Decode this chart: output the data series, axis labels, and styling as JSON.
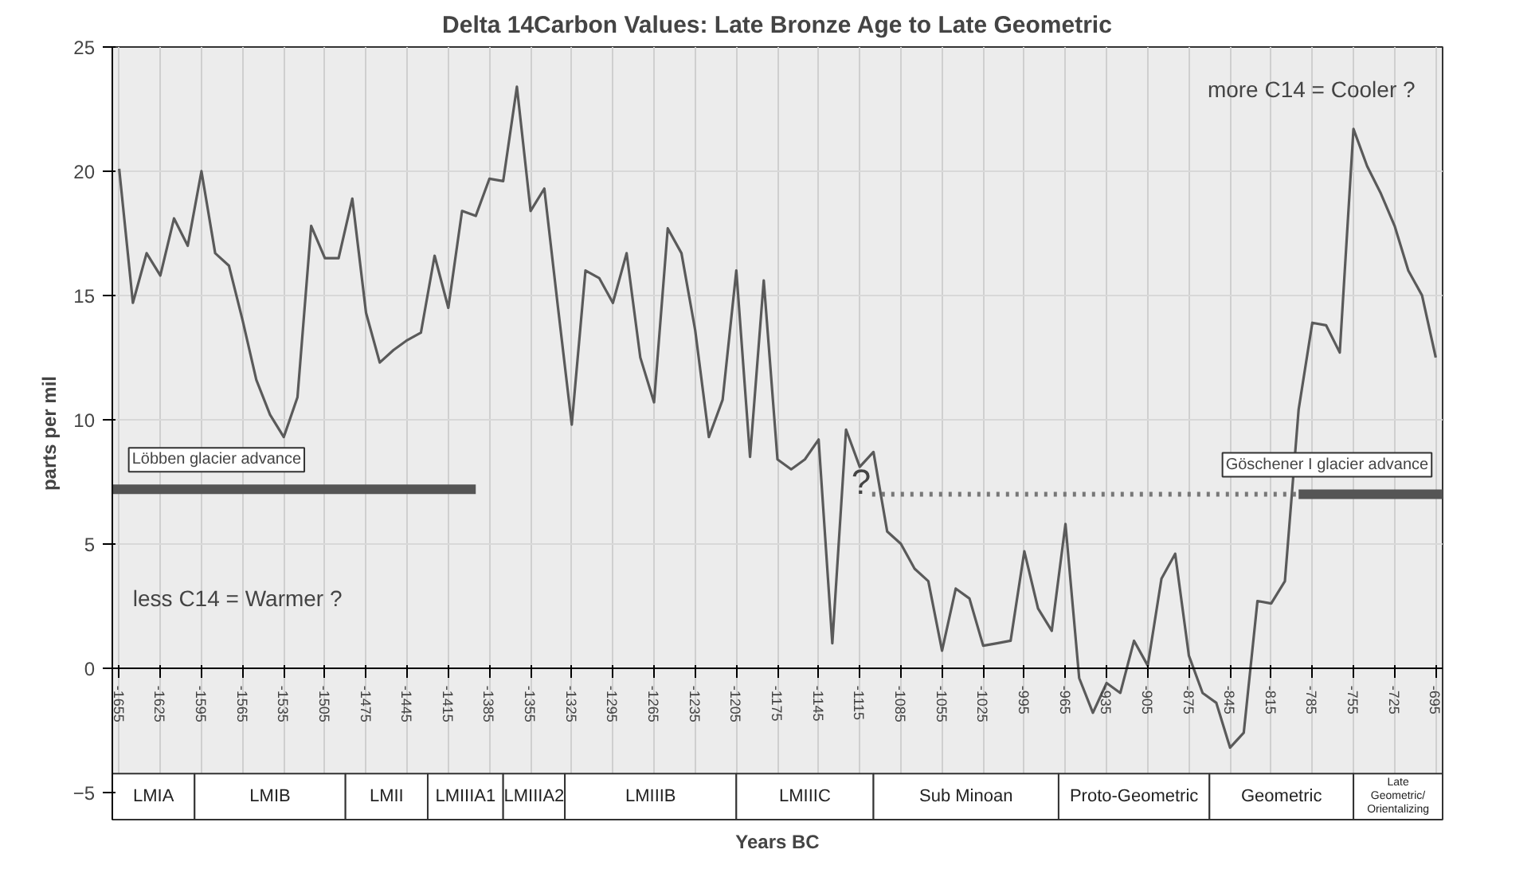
{
  "chart_data": {
    "type": "line",
    "title": "Delta 14Carbon Values: Late Bronze Age to Late Geometric",
    "xlabel": "Years BC",
    "ylabel": "parts per mil",
    "x": [
      -1655,
      -1645,
      -1635,
      -1625,
      -1615,
      -1605,
      -1595,
      -1585,
      -1575,
      -1565,
      -1555,
      -1545,
      -1535,
      -1525,
      -1515,
      -1505,
      -1495,
      -1485,
      -1475,
      -1465,
      -1455,
      -1445,
      -1435,
      -1425,
      -1415,
      -1405,
      -1395,
      -1385,
      -1375,
      -1365,
      -1355,
      -1345,
      -1335,
      -1325,
      -1315,
      -1305,
      -1295,
      -1285,
      -1275,
      -1265,
      -1255,
      -1245,
      -1235,
      -1225,
      -1215,
      -1205,
      -1195,
      -1185,
      -1175,
      -1165,
      -1155,
      -1145,
      -1135,
      -1125,
      -1115,
      -1105,
      -1095,
      -1085,
      -1075,
      -1065,
      -1055,
      -1045,
      -1035,
      -1025,
      -1015,
      -1005,
      -995,
      -985,
      -975,
      -965,
      -955,
      -945,
      -935,
      -925,
      -915,
      -905,
      -895,
      -885,
      -875,
      -865,
      -855,
      -845,
      -835,
      -825,
      -815,
      -805,
      -795,
      -785,
      -775,
      -765,
      -755,
      -745,
      -735,
      -725,
      -715,
      -705,
      -695
    ],
    "series": [
      {
        "color": "#5a5a5a",
        "values": [
          20.1,
          14.7,
          16.7,
          15.8,
          18.1,
          17.0,
          20.0,
          16.7,
          16.2,
          14.0,
          11.6,
          10.2,
          9.3,
          10.9,
          17.8,
          16.5,
          16.5,
          18.9,
          14.3,
          12.3,
          12.8,
          13.2,
          13.5,
          16.6,
          14.5,
          18.4,
          18.2,
          19.7,
          19.6,
          23.4,
          18.4,
          19.3,
          14.5,
          9.8,
          16.0,
          15.7,
          14.7,
          16.7,
          12.5,
          10.7,
          17.7,
          16.7,
          13.6,
          9.3,
          10.8,
          16.0,
          8.5,
          15.6,
          8.4,
          8.0,
          8.4,
          9.2,
          1.0,
          9.6,
          8.1,
          8.7,
          5.5,
          5.0,
          4.0,
          3.5,
          0.7,
          3.2,
          2.8,
          0.9,
          1.0,
          1.1,
          4.7,
          2.4,
          1.5,
          5.8,
          -0.4,
          -1.8,
          -0.6,
          -1.0,
          1.1,
          0.1,
          3.6,
          4.6,
          0.5,
          -1.0,
          -1.4,
          -3.2,
          -2.6,
          2.7,
          2.6,
          3.5,
          10.4,
          13.9,
          13.8,
          12.7,
          21.7,
          20.2,
          19.1,
          17.8,
          16.0,
          15.0,
          12.5
        ]
      },
      {
        "name": "Löbben glacier advance",
        "color": "#555555",
        "x": [
          -1660,
          -1395
        ],
        "values": [
          7.2,
          7.2
        ]
      },
      {
        "name": "Göschener I glacier advance",
        "color": "#555555",
        "x": [
          -795,
          -690
        ],
        "values": [
          7.0,
          7.0
        ]
      },
      {
        "color": "#777777",
        "line_style": "dotted",
        "x": [
          -1106,
          -795
        ],
        "values": [
          7.0,
          7.0
        ]
      }
    ],
    "xlim": [
      -1660,
      -690
    ],
    "ylim": [
      -6.1,
      25
    ],
    "xticks": [
      -1655,
      -1625,
      -1595,
      -1565,
      -1535,
      -1505,
      -1475,
      -1445,
      -1415,
      -1385,
      -1355,
      -1325,
      -1295,
      -1265,
      -1235,
      -1205,
      -1175,
      -1145,
      -1115,
      -1085,
      -1055,
      -1025,
      -995,
      -965,
      -935,
      -905,
      -875,
      -845,
      -815,
      -785,
      -755,
      -725,
      -695
    ],
    "yticks": [
      -5,
      0,
      5,
      10,
      15,
      20,
      25
    ],
    "grid": true,
    "bands": [
      {
        "axis": "x",
        "from": -1660,
        "to": -1600,
        "label": "LMIA"
      },
      {
        "axis": "x",
        "from": -1600,
        "to": -1490,
        "label": "LMIB"
      },
      {
        "axis": "x",
        "from": -1490,
        "to": -1430,
        "label": "LMII"
      },
      {
        "axis": "x",
        "from": -1430,
        "to": -1375,
        "label": "LMIIIA1"
      },
      {
        "axis": "x",
        "from": -1375,
        "to": -1330,
        "label": "LMIIIA2"
      },
      {
        "axis": "x",
        "from": -1330,
        "to": -1205,
        "label": "LMIIIB"
      },
      {
        "axis": "x",
        "from": -1205,
        "to": -1105,
        "label": "LMIIIC"
      },
      {
        "axis": "x",
        "from": -1105,
        "to": -970,
        "label": "Sub Minoan"
      },
      {
        "axis": "x",
        "from": -970,
        "to": -860,
        "label": "Proto-Geometric"
      },
      {
        "axis": "x",
        "from": -860,
        "to": -755,
        "label": "Geometric"
      },
      {
        "axis": "x",
        "from": -755,
        "to": -690,
        "label": "Late\nGeometric/\nOrientalizing"
      }
    ],
    "annotations": [
      "more C14 = Cooler ?",
      "less C14 = Warmer ?",
      "?"
    ]
  }
}
